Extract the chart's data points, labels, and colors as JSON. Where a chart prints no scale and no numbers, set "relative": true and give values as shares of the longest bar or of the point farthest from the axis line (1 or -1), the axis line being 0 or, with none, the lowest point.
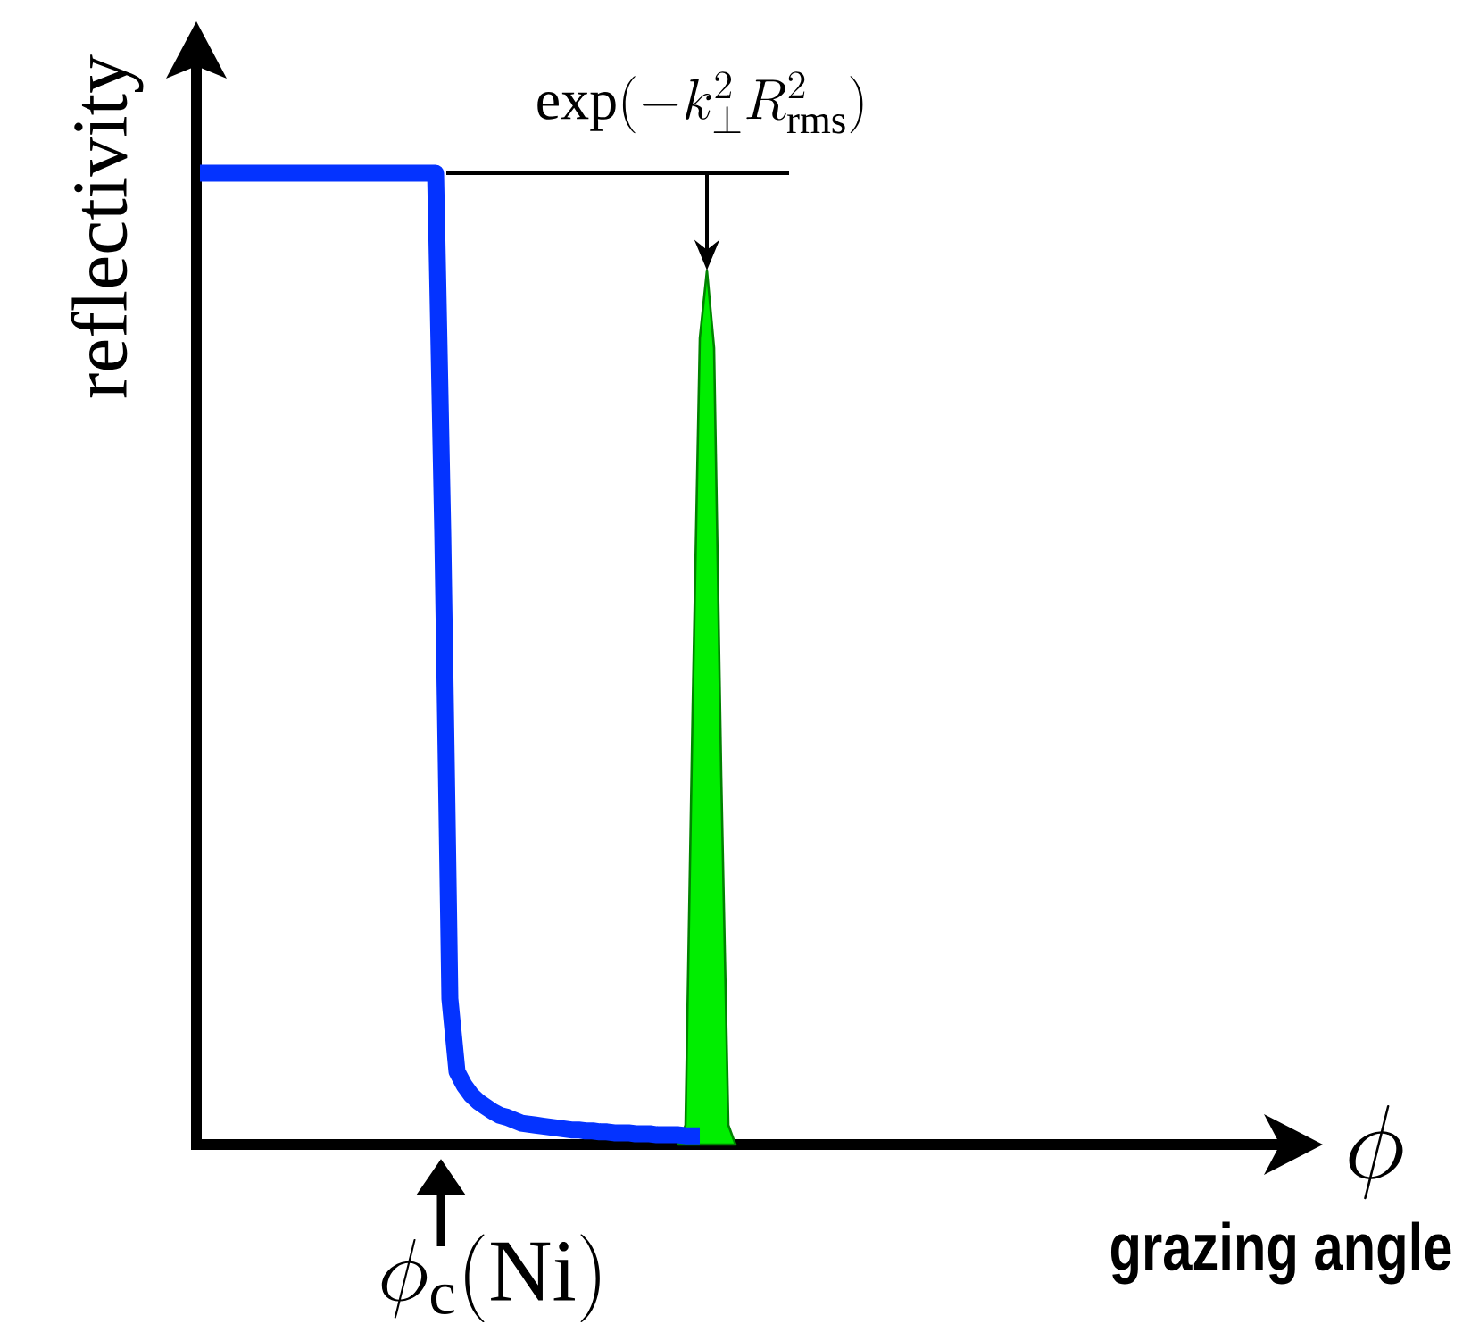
{
  "chart_data": {
    "type": "line",
    "relative": true,
    "ylabel": "reflectivity",
    "xlabel": "\\phi",
    "annotations": [
      "\\exp(-k_{\\perp}^{2}R_{\\mathrm{rms}}^{2})",
      "\\phi_{\\mathrm{c}}(\\mathrm{Ni})",
      "grazing angle"
    ],
    "categories": [
      null,
      null,
      null,
      null,
      null,
      null,
      null,
      null,
      null,
      null,
      null,
      null,
      null,
      null,
      null,
      null,
      null,
      null,
      null,
      null,
      null,
      null,
      null,
      null,
      null,
      null,
      null,
      null,
      null,
      null,
      null,
      null,
      null,
      null,
      null,
      null,
      null,
      null,
      null,
      null,
      null,
      null,
      null,
      null,
      null,
      null,
      null,
      null,
      null,
      null,
      null,
      null,
      null,
      null,
      null,
      null,
      null,
      null,
      null,
      null,
      null,
      null,
      null,
      null,
      null,
      null,
      null,
      null,
      null,
      null,
      null,
      null,
      null,
      null,
      null,
      null,
      null,
      null,
      null,
      null,
      null,
      null,
      null,
      null,
      null,
      null,
      null,
      null,
      null,
      null,
      null,
      null,
      null,
      null,
      null,
      null,
      null,
      null,
      null,
      null,
      null,
      null,
      null,
      null,
      null,
      null,
      null,
      null,
      null,
      null,
      null,
      null,
      null,
      null,
      null,
      null,
      null,
      null,
      null,
      null,
      null,
      null,
      null,
      null,
      null,
      null,
      null,
      null,
      null,
      null,
      null,
      null,
      null,
      null,
      null,
      null,
      null,
      null,
      null,
      null,
      null,
      null,
      null,
      null,
      null,
      null,
      null,
      null,
      null,
      null
    ],
    "series": [
      {
        "color": "#0433ff",
        "values": [
          1,
          1,
          1,
          1,
          1,
          1,
          1,
          1,
          1,
          1,
          1,
          1,
          1,
          1,
          1,
          1,
          1,
          1,
          1,
          1,
          1,
          1,
          1,
          1,
          1,
          1,
          1,
          1,
          1,
          1,
          1,
          1,
          1,
          1,
          0.63,
          0.15,
          0.075,
          0.061,
          0.051,
          0.044,
          0.039,
          0.034,
          0.03,
          0.028,
          0.025,
          0.022,
          0.021,
          0.02,
          0.019,
          0.018,
          0.017,
          0.016,
          0.015,
          0.015,
          0.014,
          0.014,
          0.013,
          0.013,
          0.012,
          0.012,
          0.012,
          0.011,
          0.011,
          0.011,
          0.01,
          0.01,
          0.01,
          0.01,
          0.009,
          0.009,
          0.009,
          null,
          null,
          null,
          null,
          null,
          null,
          null,
          null,
          null,
          null,
          null,
          null,
          null,
          null,
          null,
          null,
          null,
          null,
          null,
          null,
          null,
          null,
          null,
          null,
          null,
          null,
          null,
          null,
          null,
          null,
          null,
          null,
          null,
          null,
          null,
          null,
          null,
          null,
          null,
          null,
          null,
          null,
          null,
          null,
          null,
          null,
          null,
          null,
          null,
          null,
          null,
          null,
          null,
          null,
          null,
          null,
          null,
          null,
          null,
          null,
          null,
          null,
          null,
          null,
          null,
          null,
          null,
          null,
          null,
          null,
          null,
          null,
          null,
          null,
          null,
          null,
          null,
          null,
          null
        ]
      },
      {
        "type": "area",
        "color": "#00ee00",
        "values": [
          null,
          null,
          null,
          null,
          null,
          null,
          null,
          null,
          null,
          null,
          null,
          null,
          null,
          null,
          null,
          null,
          null,
          null,
          null,
          null,
          null,
          null,
          null,
          null,
          null,
          null,
          null,
          null,
          null,
          null,
          null,
          null,
          null,
          null,
          null,
          null,
          null,
          null,
          null,
          null,
          null,
          null,
          null,
          null,
          null,
          null,
          null,
          null,
          null,
          null,
          null,
          null,
          null,
          null,
          null,
          null,
          null,
          null,
          null,
          null,
          null,
          null,
          null,
          null,
          null,
          null,
          null,
          0,
          0.02,
          0.45,
          0.83,
          0.9,
          0.82,
          0.38,
          0.02,
          0,
          null,
          null,
          null,
          null,
          null,
          null,
          null,
          null,
          null,
          null,
          null,
          null,
          null,
          null,
          null,
          null,
          null,
          null,
          null,
          null,
          null,
          null,
          null,
          null,
          null,
          null,
          null,
          null,
          null,
          null,
          null,
          null,
          null,
          null,
          null,
          null,
          null,
          null,
          null,
          null,
          null,
          null,
          null,
          null,
          null,
          null,
          null,
          null,
          null,
          null,
          null,
          null,
          null,
          null,
          null,
          null,
          null,
          null,
          null,
          null,
          null,
          null,
          null,
          null,
          null,
          null,
          null,
          null,
          null,
          null,
          null,
          null,
          null,
          null
        ]
      }
    ],
    "ref_lines": [
      {
        "axis": "y",
        "value": 1
      }
    ]
  }
}
